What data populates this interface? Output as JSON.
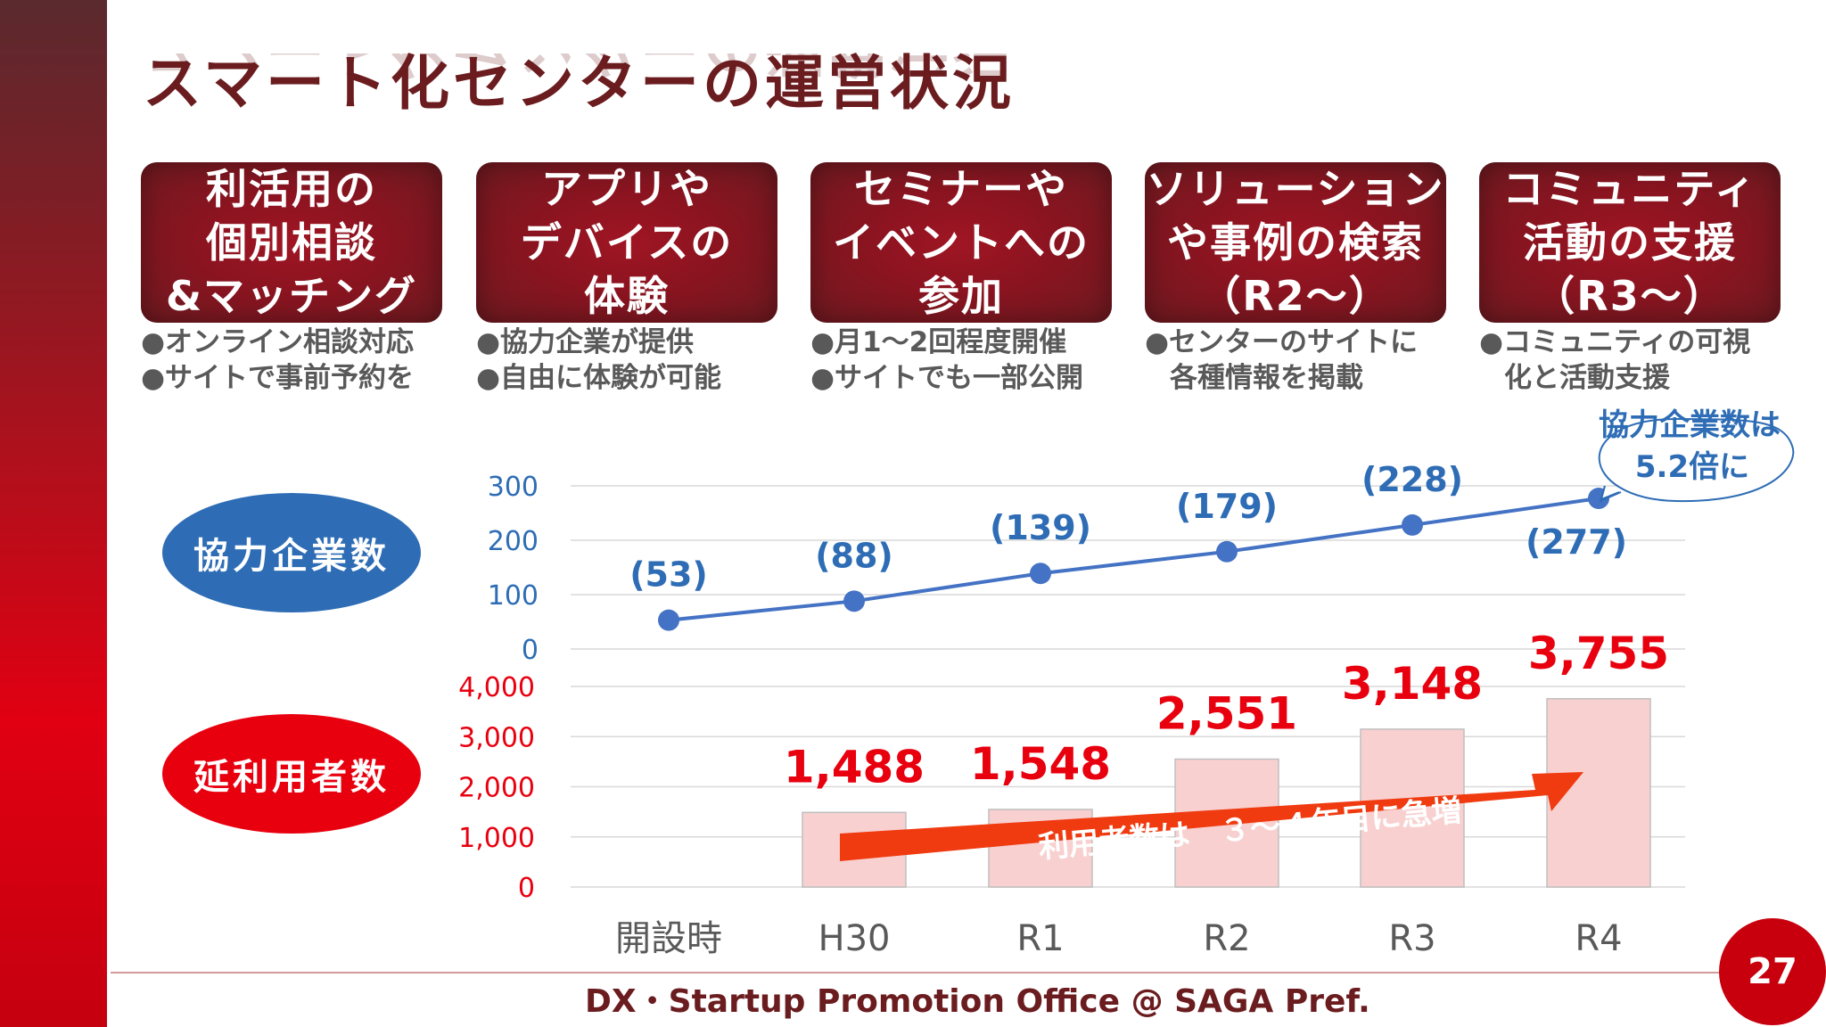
{
  "title": "スマート化センターの運営状況",
  "services": [
    {
      "lines": [
        "利活用の",
        "個別相談",
        "&マッチング"
      ],
      "desc": [
        "●オンライン相談対応",
        "●サイトで事前予約を"
      ]
    },
    {
      "lines": [
        "アプリや",
        "デバイスの",
        "体験"
      ],
      "desc": [
        "●協力企業が提供",
        "●自由に体験が可能"
      ]
    },
    {
      "lines": [
        "セミナーや",
        "イベントへの",
        "参加"
      ],
      "desc": [
        "●月1～2回程度開催",
        "●サイトでも一部公開"
      ]
    },
    {
      "lines": [
        "ソリューション",
        "や事例の検索",
        "（R2～）"
      ],
      "desc": [
        "●センターのサイトに",
        "各種情報を掲載"
      ]
    },
    {
      "lines": [
        "コミュニティ",
        "活動の支援",
        "（R3～）"
      ],
      "desc": [
        "●コミュニティの可視",
        "化と活動支援"
      ]
    }
  ],
  "legend": {
    "companies": "協力企業数",
    "users": "延利用者数"
  },
  "callout": {
    "line1": "協力企業数は",
    "line2": "5.2倍に"
  },
  "arrow_text": "利用者数は　３～４年目に急増",
  "chart_data": [
    {
      "type": "line",
      "name": "協力企業数",
      "categories": [
        "開設時",
        "H30",
        "R1",
        "R2",
        "R3",
        "R4"
      ],
      "values": [
        53,
        88,
        139,
        179,
        228,
        277
      ],
      "labels": [
        "(53)",
        "(88)",
        "(139)",
        "(179)",
        "(228)",
        "(277)"
      ],
      "ylim": [
        0,
        300
      ],
      "yticks": [
        "0",
        "100",
        "200",
        "300"
      ],
      "color": "#4472c4"
    },
    {
      "type": "bar",
      "name": "延利用者数",
      "categories": [
        "開設時",
        "H30",
        "R1",
        "R2",
        "R3",
        "R4"
      ],
      "values": [
        null,
        1488,
        1548,
        2551,
        3148,
        3755
      ],
      "labels": [
        "",
        "1,488",
        "1,548",
        "2,551",
        "3,148",
        "3,755"
      ],
      "ylim": [
        0,
        4000
      ],
      "yticks": [
        "0",
        "1,000",
        "2,000",
        "3,000",
        "4,000"
      ],
      "color": "#f8d0d0",
      "label_color": "#e8000f"
    }
  ],
  "footer": "DX・Startup Promotion Office @ SAGA Pref.",
  "page_number": "27"
}
